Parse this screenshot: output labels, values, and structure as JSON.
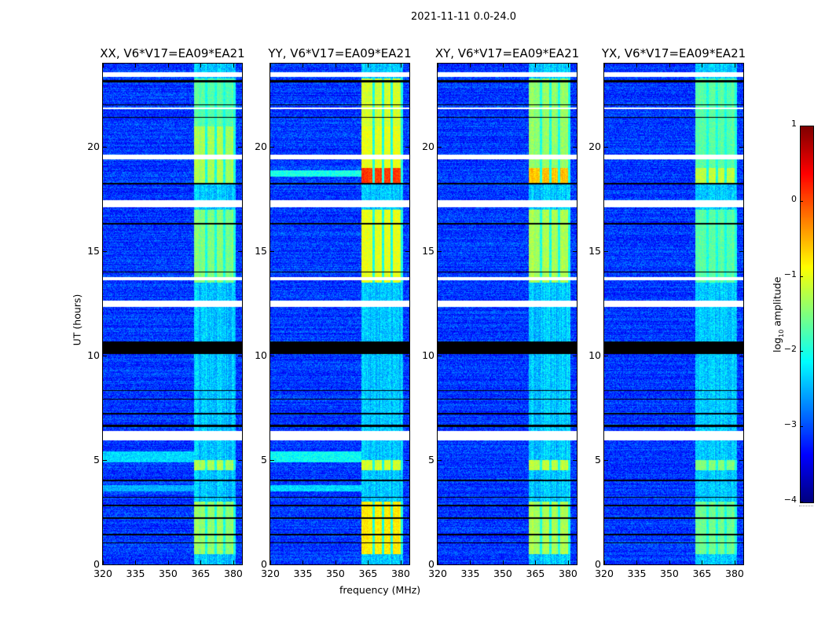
{
  "chart_data": {
    "type": "heatmap",
    "title": "2021-11-11 0.0-24.0",
    "xlabel": "frequency (MHz)",
    "ylabel": "UT (hours)",
    "xlim": [
      320,
      384
    ],
    "ylim": [
      0,
      24
    ],
    "xticks": [
      "320",
      "335",
      "350",
      "365",
      "380"
    ],
    "yticks": [
      "0",
      "5",
      "10",
      "15",
      "20"
    ],
    "colorbar": {
      "label_main": "log",
      "label_sub": "10",
      "label_tail": " amplitude",
      "range": [
        -4,
        1
      ],
      "ticks": [
        "1",
        "0",
        "−1",
        "−2",
        "−3",
        "−4"
      ],
      "cmap": "jet"
    },
    "background_level": -3.1,
    "rfi_band_mhz": [
      362,
      381
    ],
    "rfi_channels_mhz": [
      [
        362,
        367
      ],
      [
        368,
        371.5
      ],
      [
        372.5,
        375.5
      ],
      [
        376.5,
        380
      ]
    ],
    "flagged_ut": [
      [
        23.35,
        23.6
      ],
      [
        19.4,
        19.65
      ],
      [
        17.1,
        17.45
      ],
      [
        12.35,
        12.65
      ],
      [
        5.95,
        6.4
      ],
      [
        13.6,
        13.75
      ],
      [
        21.8,
        21.9
      ]
    ],
    "dropout_ut": [
      [
        23.1,
        23.2
      ],
      [
        22.0,
        22.05
      ],
      [
        21.4,
        21.45
      ],
      [
        18.2,
        18.3
      ],
      [
        16.3,
        16.35
      ],
      [
        14.0,
        14.05
      ],
      [
        10.1,
        10.7
      ],
      [
        8.3,
        8.35
      ],
      [
        7.9,
        7.95
      ],
      [
        7.2,
        7.25
      ],
      [
        6.6,
        6.7
      ],
      [
        4.0,
        4.05
      ],
      [
        3.2,
        3.25
      ],
      [
        2.8,
        2.85
      ],
      [
        2.2,
        2.25
      ],
      [
        1.4,
        1.45
      ],
      [
        1.0,
        1.05
      ]
    ],
    "panels": [
      {
        "title": "XX, V6*V17=EA09*EA21",
        "rfi_segments": [
          {
            "ut": [
              0.5,
              3.0
            ],
            "level": -1.4
          },
          {
            "ut": [
              4.5,
              5.0
            ],
            "level": -1.3
          },
          {
            "ut": [
              13.5,
              17.0
            ],
            "level": -1.5
          },
          {
            "ut": [
              18.3,
              21.0
            ],
            "level": -1.3
          },
          {
            "ut": [
              21.0,
              23.3
            ],
            "level": -1.7
          }
        ],
        "lowfreq_segments": [
          {
            "ut": [
              4.9,
              5.4
            ],
            "level": -2.3
          },
          {
            "ut": [
              3.5,
              3.8
            ],
            "level": -2.5
          }
        ]
      },
      {
        "title": "YY, V6*V17=EA09*EA21",
        "rfi_segments": [
          {
            "ut": [
              0.5,
              3.0
            ],
            "level": -0.8
          },
          {
            "ut": [
              4.5,
              5.0
            ],
            "level": -1.1
          },
          {
            "ut": [
              13.5,
              17.0
            ],
            "level": -1.0
          },
          {
            "ut": [
              18.3,
              19.0
            ],
            "level": 0.1
          },
          {
            "ut": [
              19.0,
              21.0
            ],
            "level": -1.0
          },
          {
            "ut": [
              21.0,
              23.3
            ],
            "level": -1.1
          }
        ],
        "lowfreq_segments": [
          {
            "ut": [
              4.9,
              5.4
            ],
            "level": -2.1
          },
          {
            "ut": [
              3.5,
              3.8
            ],
            "level": -2.3
          },
          {
            "ut": [
              18.6,
              18.9
            ],
            "level": -2.0
          }
        ]
      },
      {
        "title": "XY, V6*V17=EA09*EA21",
        "rfi_segments": [
          {
            "ut": [
              0.5,
              3.0
            ],
            "level": -1.3
          },
          {
            "ut": [
              4.5,
              5.0
            ],
            "level": -1.2
          },
          {
            "ut": [
              13.5,
              17.0
            ],
            "level": -1.3
          },
          {
            "ut": [
              18.3,
              19.0
            ],
            "level": -0.6
          },
          {
            "ut": [
              19.0,
              23.3
            ],
            "level": -1.4
          }
        ],
        "lowfreq_segments": []
      },
      {
        "title": "YX, V6*V17=EA09*EA21",
        "rfi_segments": [
          {
            "ut": [
              0.5,
              3.0
            ],
            "level": -1.6
          },
          {
            "ut": [
              4.5,
              5.0
            ],
            "level": -1.5
          },
          {
            "ut": [
              13.5,
              17.0
            ],
            "level": -1.7
          },
          {
            "ut": [
              18.3,
              19.0
            ],
            "level": -1.2
          },
          {
            "ut": [
              19.0,
              23.3
            ],
            "level": -1.7
          }
        ],
        "lowfreq_segments": []
      }
    ]
  }
}
